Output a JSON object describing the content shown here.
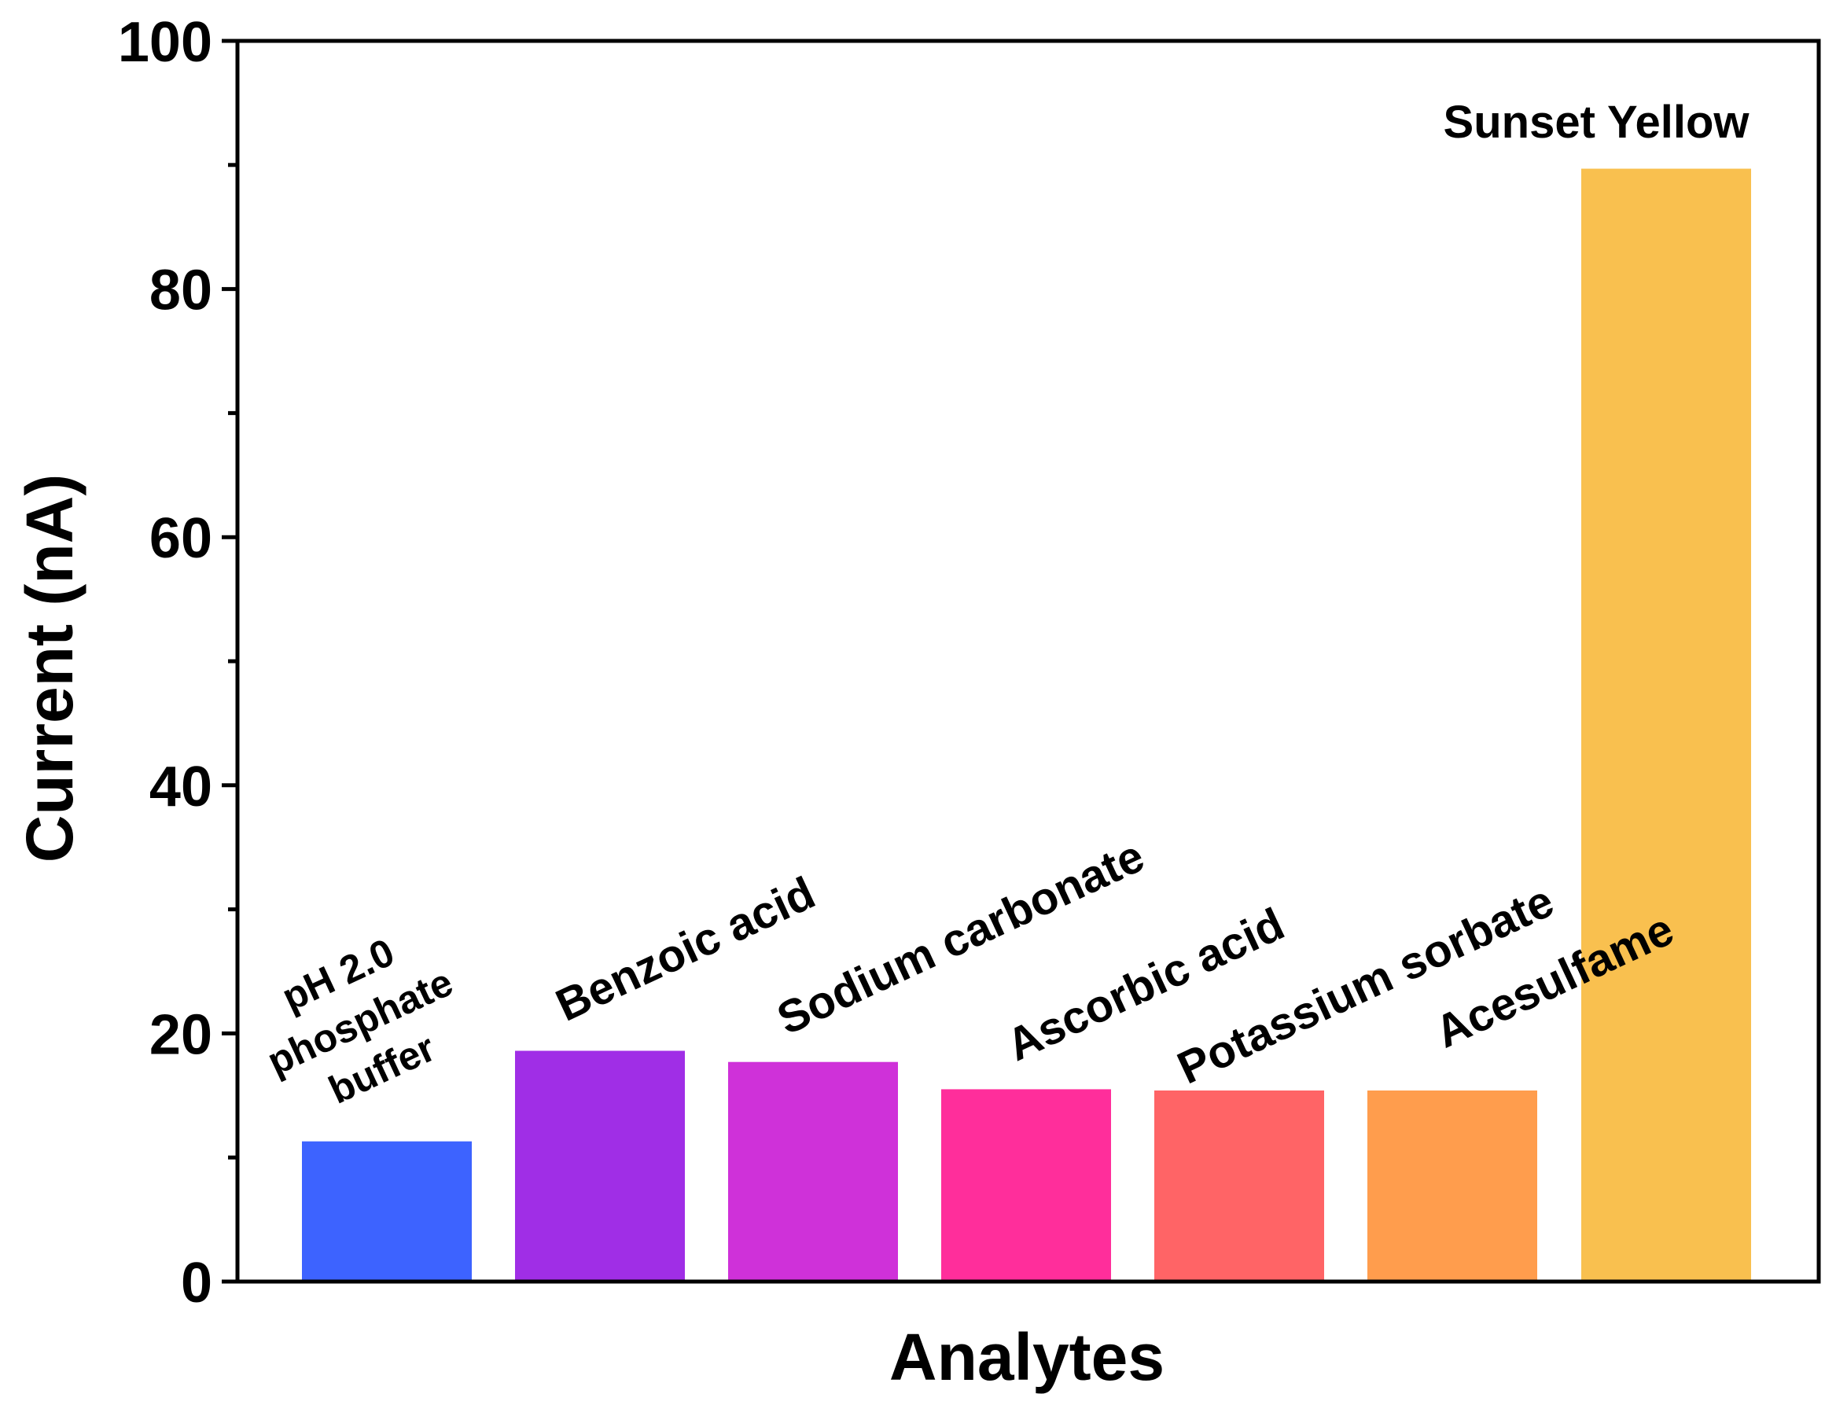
{
  "chart_data": {
    "type": "bar",
    "title": "",
    "xlabel": "Analytes",
    "ylabel": "Current (nA)",
    "ylim": [
      0,
      100
    ],
    "yticks": [
      "0",
      "20",
      "40",
      "60",
      "80",
      "100"
    ],
    "grid": false,
    "legend": "none",
    "categories": [
      "pH 2.0 phosphate buffer",
      "Benzoic acid",
      "Sodium carbonate",
      "Ascorbic acid",
      "Potassium sorbate",
      "Acesulfame",
      "Sunset Yellow"
    ],
    "label_lines": [
      [
        "pH 2.0",
        "phosphate",
        "buffer"
      ],
      [
        "Benzoic acid"
      ],
      [
        "Sodium carbonate"
      ],
      [
        "Ascorbic acid"
      ],
      [
        "Potassium sorbate"
      ],
      [
        "Acesulfame"
      ],
      [
        "Sunset Yellow"
      ]
    ],
    "values": [
      11.3,
      18.6,
      17.7,
      15.5,
      15.4,
      15.4,
      89.7
    ],
    "colors": [
      "#3D63FF",
      "#A02EE6",
      "#CF31D9",
      "#FF2E9B",
      "#FF6466",
      "#FF9D4D",
      "#F9C04F"
    ]
  }
}
